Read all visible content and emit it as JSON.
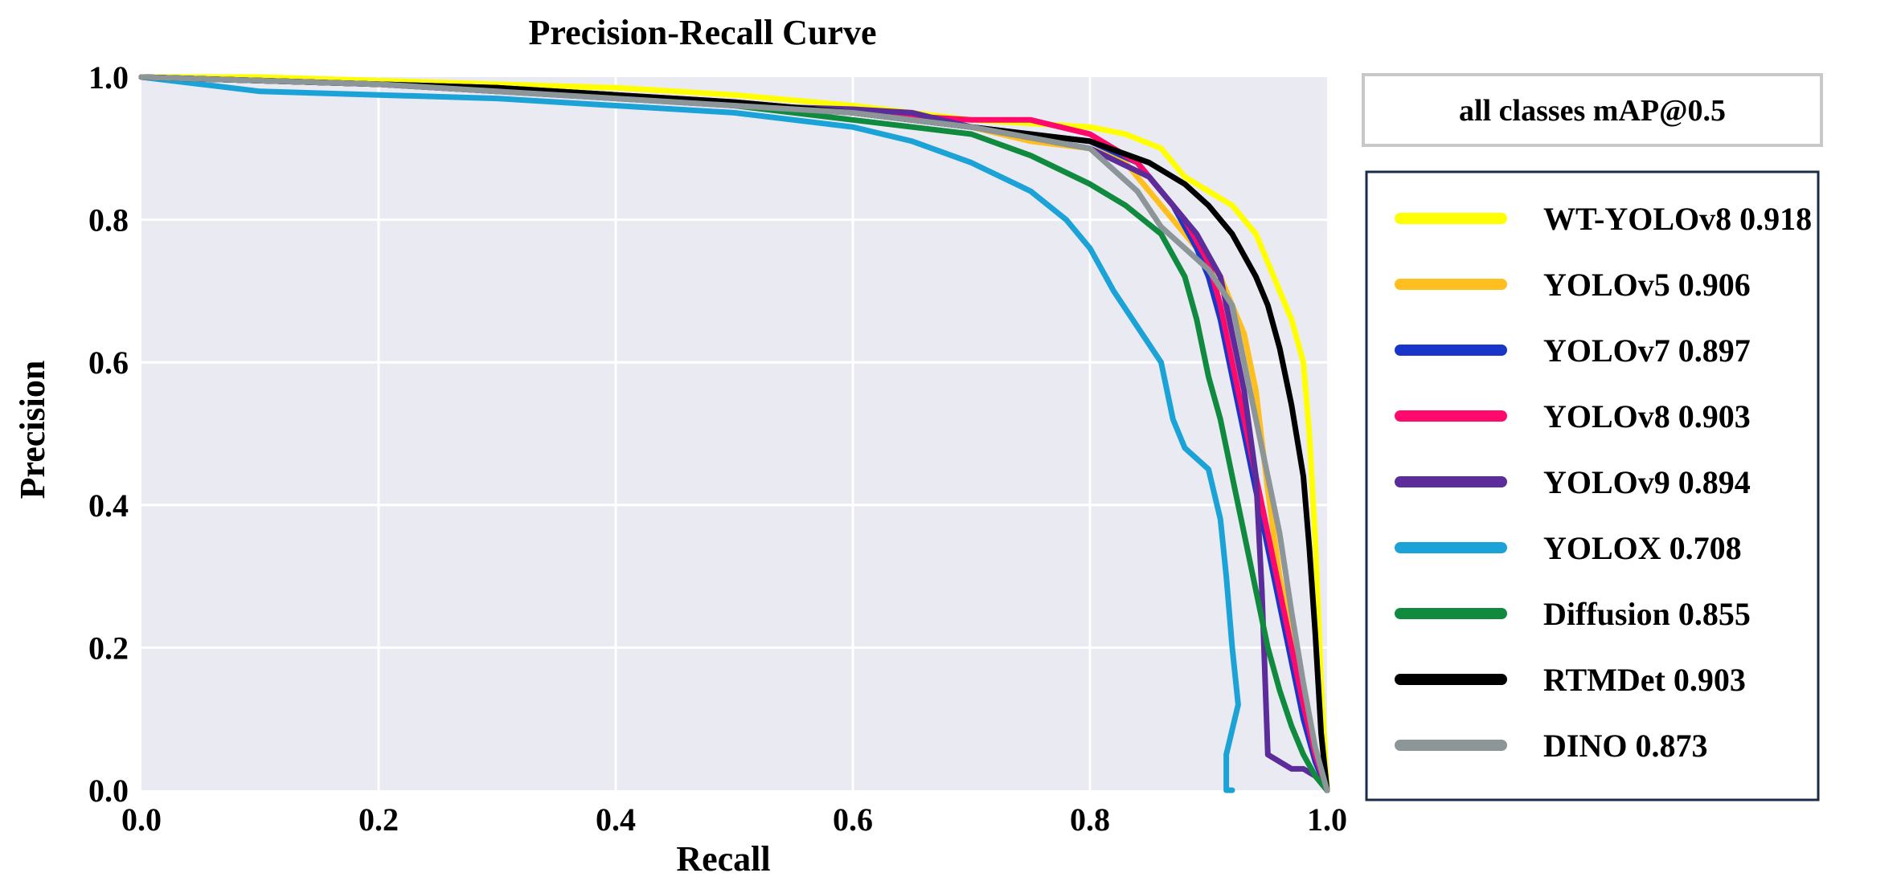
{
  "chart_data": {
    "type": "line",
    "title": "Precision-Recall Curve",
    "xlabel": "Recall",
    "ylabel": "Precision",
    "xlim": [
      0,
      1
    ],
    "ylim": [
      0,
      1
    ],
    "xticks": [
      "0.0",
      "0.2",
      "0.4",
      "0.6",
      "0.8",
      "1.0"
    ],
    "yticks": [
      "0.0",
      "0.2",
      "0.4",
      "0.6",
      "0.8",
      "1.0"
    ],
    "grid": true,
    "legend_title": "all classes mAP@0.5",
    "legend_position": "right",
    "series": [
      {
        "name": "WT-YOLOv8",
        "label": "WT-YOLOv8 0.918",
        "map": 0.918,
        "color": "#ffff00",
        "x": [
          0,
          0.1,
          0.2,
          0.3,
          0.4,
          0.5,
          0.6,
          0.7,
          0.8,
          0.83,
          0.86,
          0.88,
          0.9,
          0.92,
          0.93,
          0.94,
          0.95,
          0.96,
          0.97,
          0.98,
          0.985,
          0.99,
          0.995,
          1.0
        ],
        "y": [
          1.0,
          1.0,
          0.995,
          0.99,
          0.985,
          0.975,
          0.96,
          0.94,
          0.93,
          0.92,
          0.9,
          0.86,
          0.84,
          0.82,
          0.8,
          0.78,
          0.74,
          0.7,
          0.66,
          0.6,
          0.5,
          0.35,
          0.15,
          0.0
        ]
      },
      {
        "name": "YOLOv5",
        "label": "YOLOv5 0.906",
        "map": 0.906,
        "color": "#ffbf1f",
        "x": [
          0,
          0.1,
          0.2,
          0.3,
          0.4,
          0.5,
          0.6,
          0.7,
          0.75,
          0.8,
          0.83,
          0.85,
          0.87,
          0.89,
          0.91,
          0.92,
          0.93,
          0.94,
          0.95,
          0.96,
          0.97,
          0.98,
          0.99,
          1.0
        ],
        "y": [
          1.0,
          0.995,
          0.99,
          0.985,
          0.975,
          0.96,
          0.95,
          0.93,
          0.91,
          0.9,
          0.88,
          0.84,
          0.8,
          0.76,
          0.72,
          0.68,
          0.64,
          0.56,
          0.42,
          0.3,
          0.22,
          0.15,
          0.05,
          0.0
        ]
      },
      {
        "name": "YOLOv7",
        "label": "YOLOv7 0.897",
        "map": 0.897,
        "color": "#1a36c8",
        "x": [
          0,
          0.1,
          0.2,
          0.3,
          0.4,
          0.5,
          0.6,
          0.7,
          0.8,
          0.84,
          0.87,
          0.89,
          0.9,
          0.91,
          0.92,
          0.93,
          0.94,
          0.95,
          0.96,
          0.97,
          0.98,
          0.99,
          1.0
        ],
        "y": [
          1.0,
          0.995,
          0.99,
          0.98,
          0.975,
          0.96,
          0.95,
          0.93,
          0.91,
          0.88,
          0.82,
          0.76,
          0.72,
          0.66,
          0.58,
          0.5,
          0.42,
          0.34,
          0.26,
          0.18,
          0.1,
          0.04,
          0.0
        ]
      },
      {
        "name": "YOLOv8",
        "label": "YOLOv8 0.903",
        "map": 0.903,
        "color": "#ff0a6c",
        "x": [
          0,
          0.1,
          0.2,
          0.3,
          0.4,
          0.5,
          0.6,
          0.7,
          0.75,
          0.8,
          0.84,
          0.86,
          0.88,
          0.9,
          0.91,
          0.92,
          0.93,
          0.94,
          0.95,
          0.96,
          0.97,
          0.98,
          0.99,
          1.0
        ],
        "y": [
          1.0,
          0.995,
          0.99,
          0.985,
          0.975,
          0.965,
          0.95,
          0.94,
          0.94,
          0.92,
          0.88,
          0.84,
          0.8,
          0.74,
          0.68,
          0.6,
          0.52,
          0.44,
          0.36,
          0.28,
          0.2,
          0.12,
          0.05,
          0.0
        ]
      },
      {
        "name": "YOLOv9",
        "label": "YOLOv9 0.894",
        "map": 0.894,
        "color": "#5b2c9a",
        "x": [
          0,
          0.1,
          0.2,
          0.3,
          0.4,
          0.5,
          0.6,
          0.65,
          0.7,
          0.8,
          0.85,
          0.87,
          0.89,
          0.91,
          0.92,
          0.93,
          0.94,
          0.945,
          0.95,
          0.96,
          0.97,
          0.98,
          0.99,
          1.0
        ],
        "y": [
          1.0,
          0.995,
          0.99,
          0.98,
          0.97,
          0.96,
          0.955,
          0.95,
          0.93,
          0.9,
          0.86,
          0.82,
          0.78,
          0.72,
          0.64,
          0.56,
          0.44,
          0.28,
          0.05,
          0.04,
          0.03,
          0.03,
          0.02,
          0.0
        ]
      },
      {
        "name": "YOLOX",
        "label": "YOLOX  0.708",
        "map": 0.708,
        "color": "#1ba3d8",
        "x": [
          0,
          0.05,
          0.1,
          0.2,
          0.3,
          0.4,
          0.5,
          0.6,
          0.65,
          0.7,
          0.75,
          0.78,
          0.8,
          0.82,
          0.84,
          0.86,
          0.87,
          0.88,
          0.9,
          0.91,
          0.915,
          0.92,
          0.925,
          0.915,
          0.915,
          0.92
        ],
        "y": [
          1.0,
          0.99,
          0.98,
          0.975,
          0.97,
          0.96,
          0.95,
          0.93,
          0.91,
          0.88,
          0.84,
          0.8,
          0.76,
          0.7,
          0.65,
          0.6,
          0.52,
          0.48,
          0.45,
          0.38,
          0.3,
          0.2,
          0.12,
          0.05,
          0.0,
          0.0
        ]
      },
      {
        "name": "Diffusion",
        "label": "Diffusion 0.855",
        "map": 0.855,
        "color": "#108a3e",
        "x": [
          0,
          0.1,
          0.2,
          0.3,
          0.4,
          0.5,
          0.6,
          0.7,
          0.75,
          0.8,
          0.83,
          0.86,
          0.88,
          0.89,
          0.9,
          0.91,
          0.92,
          0.93,
          0.94,
          0.95,
          0.96,
          0.97,
          0.98,
          0.99,
          1.0
        ],
        "y": [
          1.0,
          0.995,
          0.99,
          0.985,
          0.975,
          0.96,
          0.94,
          0.92,
          0.89,
          0.85,
          0.82,
          0.78,
          0.72,
          0.66,
          0.58,
          0.52,
          0.44,
          0.36,
          0.28,
          0.2,
          0.14,
          0.09,
          0.05,
          0.02,
          0.0
        ]
      },
      {
        "name": "RTMDet",
        "label": "RTMDet 0.903",
        "map": 0.903,
        "color": "#000000",
        "x": [
          0,
          0.1,
          0.2,
          0.3,
          0.4,
          0.5,
          0.6,
          0.7,
          0.8,
          0.85,
          0.88,
          0.9,
          0.92,
          0.94,
          0.95,
          0.96,
          0.97,
          0.98,
          0.985,
          0.99,
          0.995,
          1.0
        ],
        "y": [
          1.0,
          0.995,
          0.99,
          0.985,
          0.975,
          0.965,
          0.95,
          0.93,
          0.91,
          0.88,
          0.85,
          0.82,
          0.78,
          0.72,
          0.68,
          0.62,
          0.54,
          0.44,
          0.34,
          0.22,
          0.08,
          0.0
        ]
      },
      {
        "name": "DINO",
        "label": "DINO 0.873",
        "map": 0.873,
        "color": "#8c9698",
        "x": [
          0,
          0.1,
          0.2,
          0.3,
          0.4,
          0.5,
          0.6,
          0.7,
          0.8,
          0.84,
          0.86,
          0.88,
          0.9,
          0.92,
          0.93,
          0.94,
          0.95,
          0.96,
          0.97,
          0.98,
          0.99,
          1.0
        ],
        "y": [
          1.0,
          0.995,
          0.99,
          0.98,
          0.97,
          0.96,
          0.95,
          0.93,
          0.9,
          0.84,
          0.79,
          0.76,
          0.73,
          0.68,
          0.6,
          0.52,
          0.44,
          0.36,
          0.25,
          0.15,
          0.06,
          0.0
        ]
      }
    ]
  }
}
